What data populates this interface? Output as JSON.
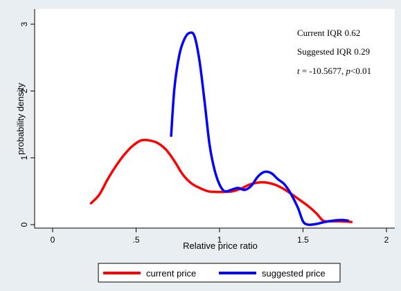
{
  "chart_data": {
    "type": "line",
    "xlabel": "Relative price ratio",
    "ylabel": "probability density",
    "xlim": [
      0,
      2
    ],
    "ylim": [
      0,
      3
    ],
    "x_ticks": [
      {
        "value": 0,
        "label": "0"
      },
      {
        "value": 0.5,
        "label": ".5"
      },
      {
        "value": 1,
        "label": "1"
      },
      {
        "value": 1.5,
        "label": "1.5"
      },
      {
        "value": 2,
        "label": "2"
      }
    ],
    "y_ticks": [
      {
        "value": 0,
        "label": "0"
      },
      {
        "value": 1,
        "label": "1"
      },
      {
        "value": 2,
        "label": "2"
      },
      {
        "value": 3,
        "label": "3"
      }
    ],
    "grid": false,
    "legend_position": "bottom",
    "annotations": {
      "current_iqr": "Current IQR 0.62",
      "suggested_iqr": "Suggested IQR 0.29",
      "t_label": "t",
      "t_value": " = -10.5677, ",
      "p_label": "p",
      "p_value": "<0.01"
    },
    "series": [
      {
        "name": "current price",
        "color": "#ff0000",
        "points": [
          [
            0.23,
            0.32
          ],
          [
            0.28,
            0.45
          ],
          [
            0.33,
            0.68
          ],
          [
            0.38,
            0.88
          ],
          [
            0.43,
            1.05
          ],
          [
            0.48,
            1.18
          ],
          [
            0.53,
            1.26
          ],
          [
            0.58,
            1.26
          ],
          [
            0.63,
            1.22
          ],
          [
            0.68,
            1.12
          ],
          [
            0.73,
            0.95
          ],
          [
            0.78,
            0.75
          ],
          [
            0.83,
            0.62
          ],
          [
            0.88,
            0.55
          ],
          [
            0.93,
            0.5
          ],
          [
            0.98,
            0.49
          ],
          [
            1.03,
            0.49
          ],
          [
            1.08,
            0.5
          ],
          [
            1.13,
            0.54
          ],
          [
            1.18,
            0.6
          ],
          [
            1.23,
            0.63
          ],
          [
            1.28,
            0.63
          ],
          [
            1.33,
            0.6
          ],
          [
            1.38,
            0.54
          ],
          [
            1.43,
            0.46
          ],
          [
            1.48,
            0.37
          ],
          [
            1.53,
            0.28
          ],
          [
            1.58,
            0.17
          ],
          [
            1.62,
            0.06
          ],
          [
            1.66,
            0.05
          ],
          [
            1.72,
            0.05
          ],
          [
            1.79,
            0.04
          ]
        ]
      },
      {
        "name": "suggested price",
        "color": "#0000ff",
        "points": [
          [
            0.71,
            1.33
          ],
          [
            0.73,
            2.05
          ],
          [
            0.76,
            2.55
          ],
          [
            0.79,
            2.78
          ],
          [
            0.82,
            2.87
          ],
          [
            0.85,
            2.82
          ],
          [
            0.88,
            2.45
          ],
          [
            0.91,
            1.85
          ],
          [
            0.94,
            1.2
          ],
          [
            0.97,
            0.82
          ],
          [
            1.0,
            0.6
          ],
          [
            1.03,
            0.5
          ],
          [
            1.07,
            0.52
          ],
          [
            1.11,
            0.55
          ],
          [
            1.15,
            0.52
          ],
          [
            1.19,
            0.58
          ],
          [
            1.23,
            0.72
          ],
          [
            1.27,
            0.79
          ],
          [
            1.31,
            0.77
          ],
          [
            1.35,
            0.68
          ],
          [
            1.39,
            0.6
          ],
          [
            1.43,
            0.45
          ],
          [
            1.47,
            0.25
          ],
          [
            1.5,
            0.05
          ],
          [
            1.53,
            0.0
          ],
          [
            1.58,
            0.01
          ],
          [
            1.63,
            0.04
          ],
          [
            1.68,
            0.06
          ],
          [
            1.73,
            0.07
          ],
          [
            1.77,
            0.06
          ]
        ]
      }
    ]
  }
}
